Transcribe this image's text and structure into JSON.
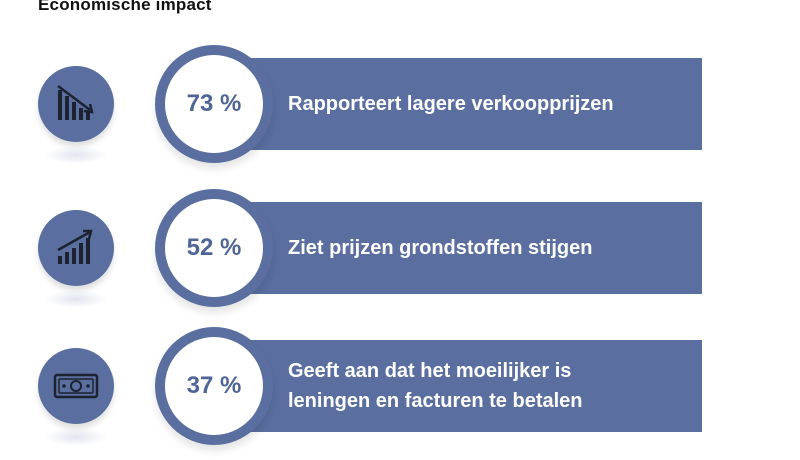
{
  "title": "Economische impact",
  "colors": {
    "accent": "#5a6fa0",
    "percent_text": "#4f6596",
    "background": "#ffffff"
  },
  "items": [
    {
      "percent": "73 %",
      "text": "Rapporteert lagere verkoopprijzen",
      "icon": "declining-bar-chart-icon"
    },
    {
      "percent": "52 %",
      "text": "Ziet prijzen grondstoffen stijgen",
      "icon": "rising-bar-chart-icon"
    },
    {
      "percent": "37 %",
      "text": "Geeft aan dat het moeilijker is\nleningen en facturen te betalen",
      "icon": "banknote-icon"
    }
  ]
}
